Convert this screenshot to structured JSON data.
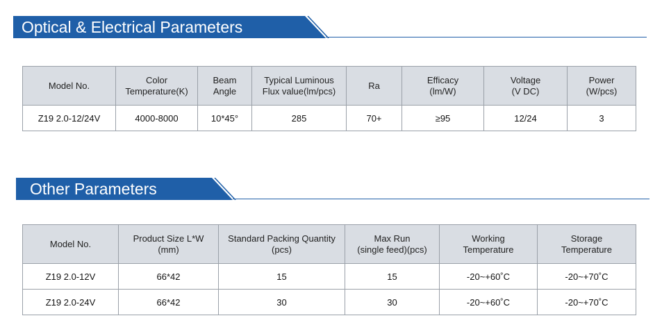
{
  "optical": {
    "title": "Optical & Electrical Parameters",
    "headers": [
      [
        "Model No."
      ],
      [
        "Color",
        "Temperature(K)"
      ],
      [
        "Beam",
        "Angle"
      ],
      [
        "Typical Luminous",
        "Flux value(lm/pcs)"
      ],
      [
        "Ra"
      ],
      [
        "Efficacy",
        "(lm/W)"
      ],
      [
        "Voltage",
        "(V DC)"
      ],
      [
        "Power",
        "(W/pcs)"
      ]
    ],
    "rows": [
      [
        "Z19 2.0-12/24V",
        "4000-8000",
        "10*45°",
        "285",
        "70+",
        "≥95",
        "12/24",
        "3"
      ]
    ]
  },
  "other": {
    "title": "Other Parameters",
    "headers": [
      [
        "Model No."
      ],
      [
        "Product Size L*W",
        "(mm)"
      ],
      [
        "Standard Packing Quantity",
        "(pcs)"
      ],
      [
        "Max Run",
        "(single feed)(pcs)"
      ],
      [
        "Working",
        "Temperature"
      ],
      [
        "Storage",
        "Temperature"
      ]
    ],
    "rows": [
      [
        "Z19 2.0-12V",
        "66*42",
        "15",
        "15",
        "-20~+60˚C",
        "-20~+70˚C"
      ],
      [
        "Z19 2.0-24V",
        "66*42",
        "30",
        "30",
        "-20~+60˚C",
        "-20~+70˚C"
      ]
    ]
  },
  "colors": {
    "header_blue": "#1f5fa8",
    "table_header_bg": "#d9dde3",
    "border": "#9aa0a8"
  }
}
